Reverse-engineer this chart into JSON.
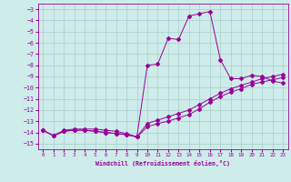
{
  "xlabel": "Windchill (Refroidissement éolien,°C)",
  "background_color": "#ceecea",
  "grid_color": "#aaceca",
  "line_color": "#990099",
  "xlim": [
    -0.5,
    23.5
  ],
  "ylim": [
    -15.5,
    -2.5
  ],
  "xticks": [
    0,
    1,
    2,
    3,
    4,
    5,
    6,
    7,
    8,
    9,
    10,
    11,
    12,
    13,
    14,
    15,
    16,
    17,
    18,
    19,
    20,
    21,
    22,
    23
  ],
  "yticks": [
    -3,
    -4,
    -5,
    -6,
    -7,
    -8,
    -9,
    -10,
    -11,
    -12,
    -13,
    -14,
    -15
  ],
  "line1_x": [
    0,
    1,
    2,
    3,
    4,
    5,
    6,
    7,
    8,
    9,
    10,
    11,
    12,
    13,
    14,
    15,
    16,
    17,
    18,
    19,
    20,
    21,
    22,
    23
  ],
  "line1_y": [
    -13.8,
    -14.3,
    -13.8,
    -13.7,
    -13.7,
    -13.7,
    -13.8,
    -13.9,
    -14.1,
    -14.4,
    -8.0,
    -7.9,
    -5.6,
    -5.7,
    -3.6,
    -3.4,
    -3.2,
    -7.5,
    -9.2,
    -9.2,
    -8.9,
    -9.0,
    -9.4,
    -9.6
  ],
  "line2_x": [
    0,
    1,
    2,
    3,
    4,
    5,
    6,
    7,
    8,
    9,
    10,
    11,
    12,
    13,
    14,
    15,
    16,
    17,
    18,
    19,
    20,
    21,
    22,
    23
  ],
  "line2_y": [
    -13.8,
    -14.3,
    -13.9,
    -13.8,
    -13.8,
    -13.9,
    -14.0,
    -14.1,
    -14.2,
    -14.4,
    -13.5,
    -13.2,
    -13.0,
    -12.7,
    -12.4,
    -11.9,
    -11.3,
    -10.8,
    -10.4,
    -10.1,
    -9.7,
    -9.5,
    -9.3,
    -9.1
  ],
  "line3_x": [
    0,
    1,
    2,
    3,
    4,
    5,
    6,
    7,
    8,
    9,
    10,
    11,
    12,
    13,
    14,
    15,
    16,
    17,
    18,
    19,
    20,
    21,
    22,
    23
  ],
  "line3_y": [
    -13.8,
    -14.3,
    -13.9,
    -13.8,
    -13.8,
    -13.9,
    -14.0,
    -14.1,
    -14.2,
    -14.4,
    -13.2,
    -12.9,
    -12.6,
    -12.3,
    -12.0,
    -11.5,
    -11.0,
    -10.5,
    -10.1,
    -9.8,
    -9.5,
    -9.2,
    -9.0,
    -8.8
  ]
}
